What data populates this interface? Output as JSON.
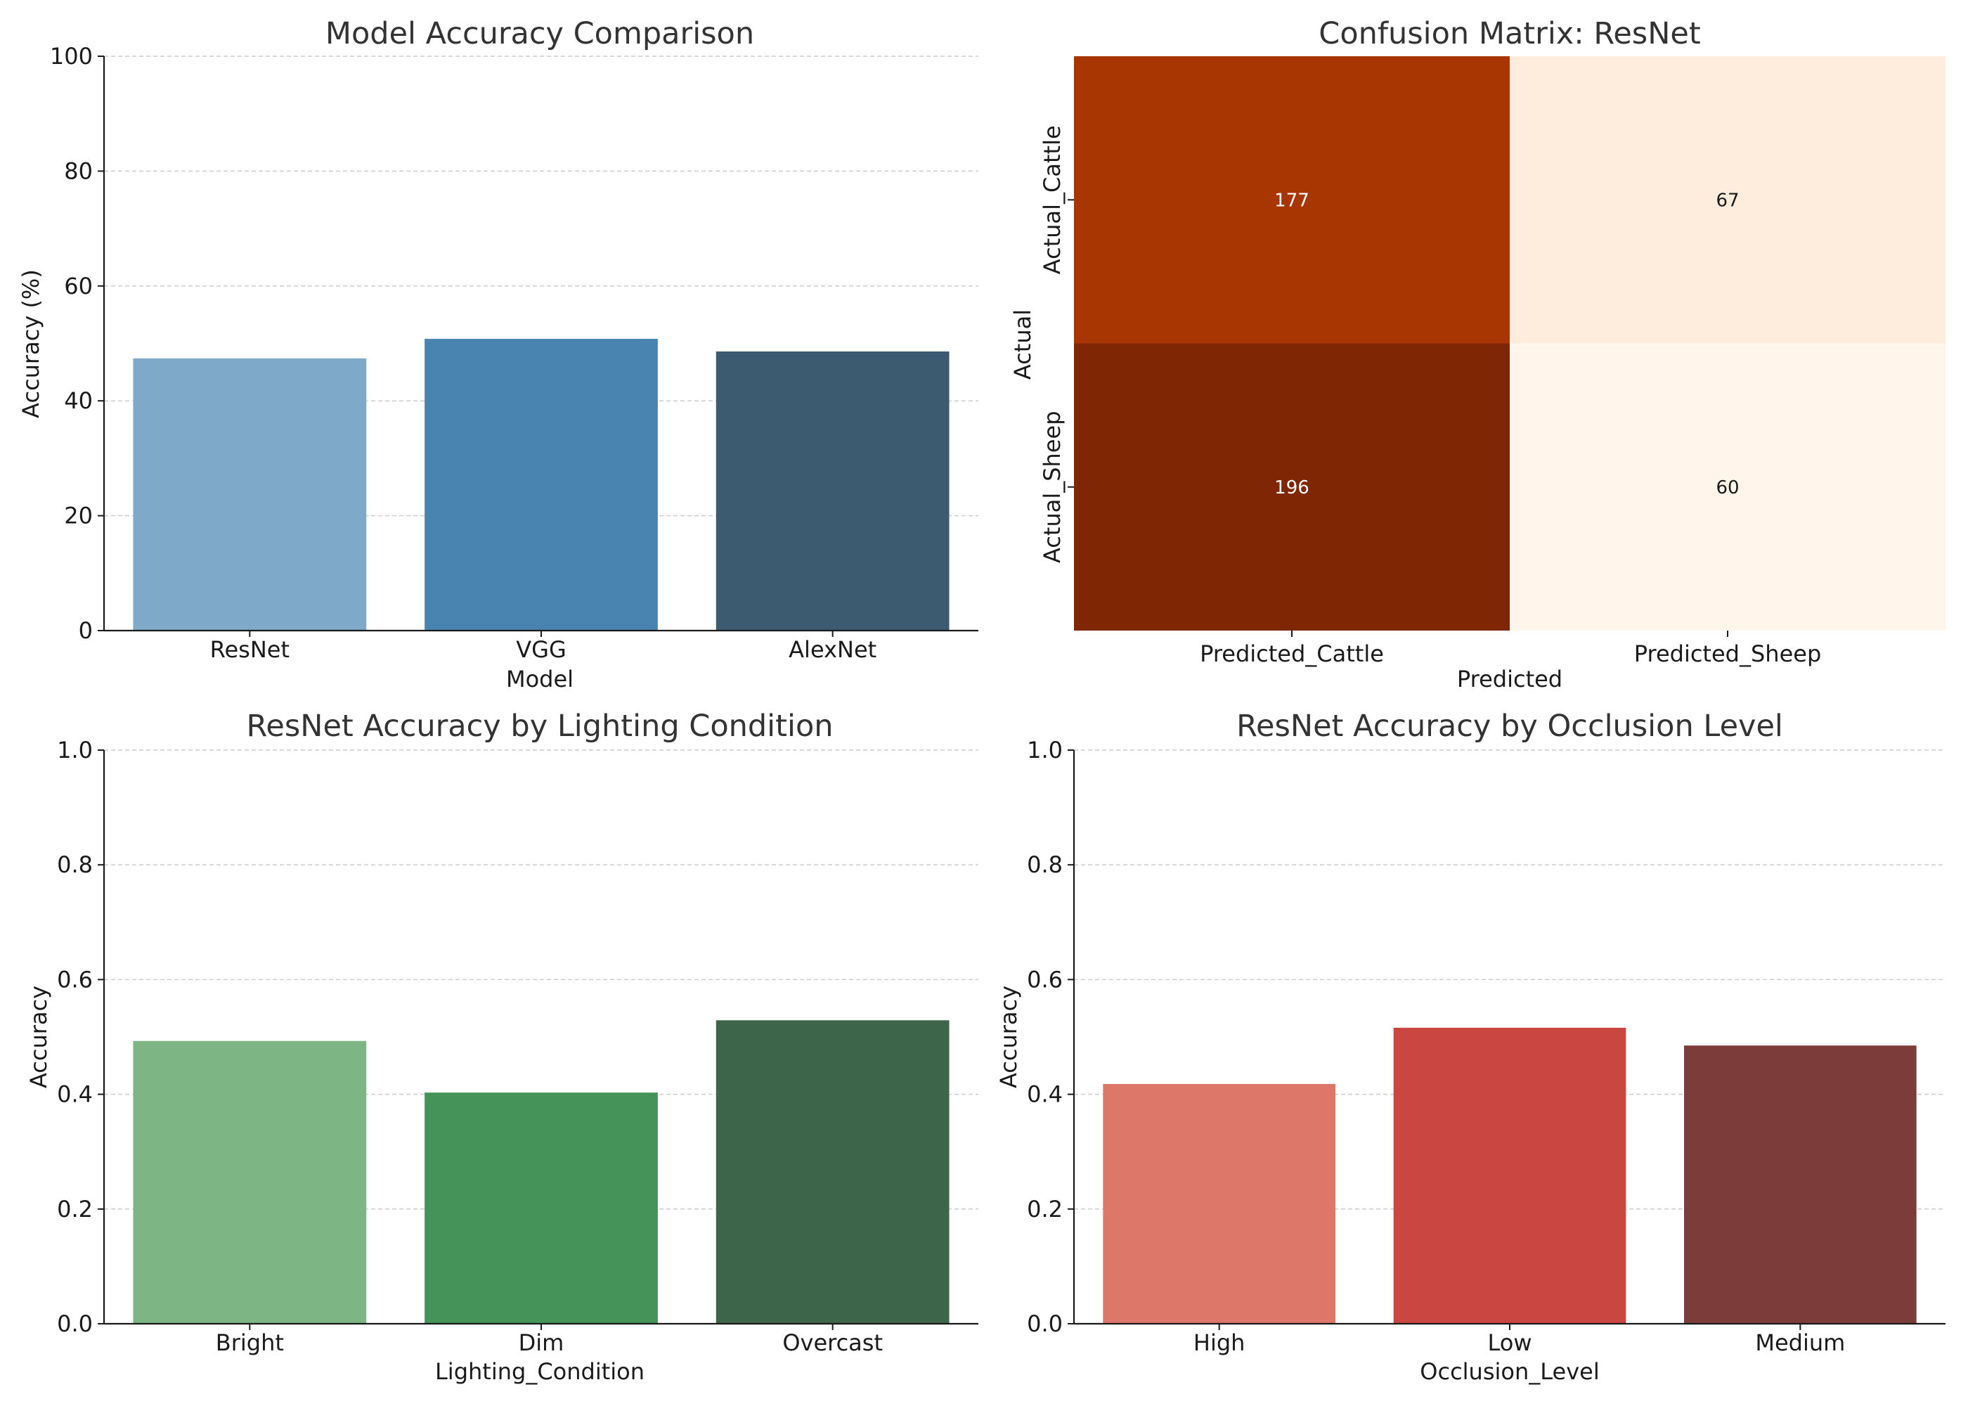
{
  "chart_data": [
    {
      "type": "bar",
      "title": "Model Accuracy Comparison",
      "xlabel": "Model",
      "ylabel": "Accuracy (%)",
      "ylim": [
        0,
        100
      ],
      "yticks": [
        "0",
        "20",
        "40",
        "60",
        "80",
        "100"
      ],
      "ytick_values": [
        0,
        20,
        40,
        60,
        80,
        100
      ],
      "grid": "horizontal",
      "categories": [
        "ResNet",
        "VGG",
        "AlexNet"
      ],
      "values": [
        47.4,
        50.8,
        48.6
      ],
      "colors": [
        "#7ea9c8",
        "#4884af",
        "#3d5b70"
      ]
    },
    {
      "type": "heatmap",
      "title": "Confusion Matrix: ResNet",
      "xlabel": "Predicted",
      "ylabel": "Actual",
      "x_categories": [
        "Predicted_Cattle",
        "Predicted_Sheep"
      ],
      "y_categories": [
        "Actual_Cattle",
        "Actual_Sheep"
      ],
      "values": [
        [
          177,
          67
        ],
        [
          196,
          60
        ]
      ],
      "cell_labels": [
        [
          "177",
          "67"
        ],
        [
          "196",
          "60"
        ]
      ],
      "cell_colors": [
        [
          "#a83603",
          "#feeddc"
        ],
        [
          "#7f2704",
          "#fff5eb"
        ]
      ],
      "label_colors": [
        [
          "#ffffff",
          "#1a1a1a"
        ],
        [
          "#ffffff",
          "#1a1a1a"
        ]
      ]
    },
    {
      "type": "bar",
      "title": "ResNet Accuracy by Lighting Condition",
      "xlabel": "Lighting_Condition",
      "ylabel": "Accuracy",
      "ylim": [
        0,
        1
      ],
      "yticks": [
        "0.0",
        "0.2",
        "0.4",
        "0.6",
        "0.8",
        "1.0"
      ],
      "ytick_values": [
        0,
        0.2,
        0.4,
        0.6,
        0.8,
        1.0
      ],
      "grid": "horizontal",
      "categories": [
        "Bright",
        "Dim",
        "Overcast"
      ],
      "values": [
        0.493,
        0.403,
        0.529
      ],
      "colors": [
        "#7db584",
        "#46935a",
        "#3c654a"
      ]
    },
    {
      "type": "bar",
      "title": "ResNet Accuracy by Occlusion Level",
      "xlabel": "Occlusion_Level",
      "ylabel": "Accuracy",
      "ylim": [
        0,
        1
      ],
      "yticks": [
        "0.0",
        "0.2",
        "0.4",
        "0.6",
        "0.8",
        "1.0"
      ],
      "ytick_values": [
        0,
        0.2,
        0.4,
        0.6,
        0.8,
        1.0
      ],
      "grid": "horizontal",
      "categories": [
        "High",
        "Low",
        "Medium"
      ],
      "values": [
        0.418,
        0.516,
        0.485
      ],
      "colors": [
        "#dc7769",
        "#ca4640",
        "#7c3c3a"
      ]
    }
  ]
}
